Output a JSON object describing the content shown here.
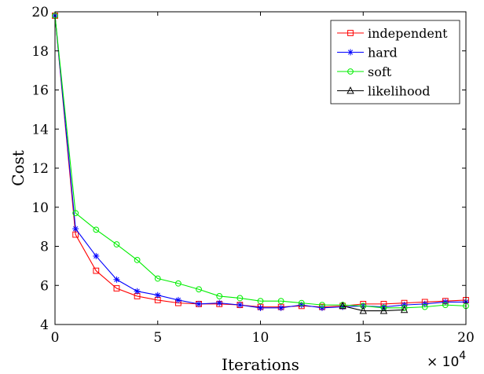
{
  "chart_data": {
    "type": "line",
    "title": "",
    "xlabel": "Iterations",
    "ylabel": "Cost",
    "x_multiplier_label": "× 10",
    "x_multiplier_exponent": "4",
    "xlim": [
      0,
      20
    ],
    "ylim": [
      4,
      20
    ],
    "x_ticks": [
      0,
      5,
      10,
      15,
      20
    ],
    "y_ticks": [
      4,
      6,
      8,
      10,
      12,
      14,
      16,
      18,
      20
    ],
    "legend_position": "top-right",
    "grid": false,
    "series": [
      {
        "name": "independent",
        "color": "#ff0000",
        "marker": "square",
        "x": [
          0,
          1,
          2,
          3,
          4,
          5,
          6,
          7,
          8,
          9,
          10,
          11,
          12,
          13,
          14,
          15,
          16,
          17,
          18,
          19,
          20
        ],
        "values": [
          19.8,
          8.6,
          6.75,
          5.85,
          5.45,
          5.25,
          5.1,
          5.05,
          5.05,
          5.0,
          4.9,
          4.9,
          4.95,
          4.9,
          4.95,
          5.05,
          5.05,
          5.1,
          5.15,
          5.2,
          5.25
        ]
      },
      {
        "name": "hard",
        "color": "#0000ff",
        "marker": "asterisk",
        "x": [
          0,
          1,
          2,
          3,
          4,
          5,
          6,
          7,
          8,
          9,
          10,
          11,
          12,
          13,
          14,
          15,
          16,
          17,
          18,
          19,
          20
        ],
        "values": [
          19.8,
          8.9,
          7.5,
          6.3,
          5.7,
          5.5,
          5.25,
          5.05,
          5.1,
          5.0,
          4.85,
          4.85,
          5.0,
          4.85,
          4.9,
          4.95,
          4.9,
          5.0,
          5.05,
          5.15,
          5.15
        ]
      },
      {
        "name": "soft",
        "color": "#00ee00",
        "marker": "circle",
        "x": [
          0,
          1,
          2,
          3,
          4,
          5,
          6,
          7,
          8,
          9,
          10,
          11,
          12,
          13,
          14,
          15,
          16,
          17,
          18,
          19,
          20
        ],
        "values": [
          19.8,
          9.7,
          8.85,
          8.1,
          7.3,
          6.35,
          6.1,
          5.8,
          5.45,
          5.35,
          5.2,
          5.2,
          5.1,
          5.0,
          5.0,
          4.95,
          4.85,
          4.85,
          4.9,
          5.0,
          4.95
        ]
      },
      {
        "name": "likelihood",
        "color": "#000000",
        "marker": "triangle",
        "x": [
          14,
          15,
          16,
          17
        ],
        "values": [
          4.95,
          4.7,
          4.7,
          4.75
        ]
      }
    ]
  }
}
